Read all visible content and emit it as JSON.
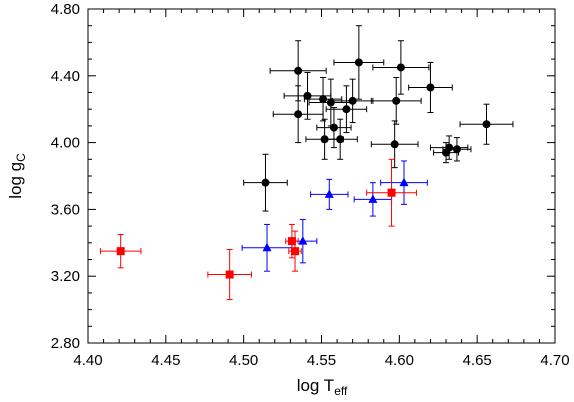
{
  "chart_data": {
    "type": "scatter",
    "title": "",
    "xlabel": {
      "main": "log T",
      "sub": "eff"
    },
    "ylabel": {
      "main": "log g",
      "sub": "C"
    },
    "xlim": [
      4.4,
      4.7
    ],
    "ylim": [
      2.8,
      4.8
    ],
    "xticks": [
      "4.40",
      "4.45",
      "4.50",
      "4.55",
      "4.60",
      "4.65",
      "4.70"
    ],
    "yticks": [
      "2.80",
      "3.20",
      "3.60",
      "4.00",
      "4.40",
      "4.80"
    ],
    "grid": false,
    "legend": "none",
    "series": [
      {
        "marker": "circle",
        "color": "#000000",
        "points": [
          {
            "x": 4.535,
            "y": 4.43,
            "xerr": 0.018,
            "yerr": 0.18
          },
          {
            "x": 4.574,
            "y": 4.48,
            "xerr": 0.016,
            "yerr": 0.22
          },
          {
            "x": 4.601,
            "y": 4.45,
            "xerr": 0.018,
            "yerr": 0.16
          },
          {
            "x": 4.62,
            "y": 4.33,
            "xerr": 0.014,
            "yerr": 0.15
          },
          {
            "x": 4.541,
            "y": 4.28,
            "xerr": 0.015,
            "yerr": 0.14
          },
          {
            "x": 4.551,
            "y": 4.26,
            "xerr": 0.012,
            "yerr": 0.13
          },
          {
            "x": 4.556,
            "y": 4.24,
            "xerr": 0.014,
            "yerr": 0.14
          },
          {
            "x": 4.57,
            "y": 4.25,
            "xerr": 0.013,
            "yerr": 0.13
          },
          {
            "x": 4.598,
            "y": 4.25,
            "xerr": 0.016,
            "yerr": 0.14
          },
          {
            "x": 4.566,
            "y": 4.2,
            "xerr": 0.013,
            "yerr": 0.14
          },
          {
            "x": 4.535,
            "y": 4.17,
            "xerr": 0.016,
            "yerr": 0.17
          },
          {
            "x": 4.558,
            "y": 4.09,
            "xerr": 0.011,
            "yerr": 0.12
          },
          {
            "x": 4.656,
            "y": 4.11,
            "xerr": 0.017,
            "yerr": 0.12
          },
          {
            "x": 4.552,
            "y": 4.02,
            "xerr": 0.012,
            "yerr": 0.12
          },
          {
            "x": 4.562,
            "y": 4.02,
            "xerr": 0.011,
            "yerr": 0.12
          },
          {
            "x": 4.597,
            "y": 3.99,
            "xerr": 0.015,
            "yerr": 0.14
          },
          {
            "x": 4.632,
            "y": 3.97,
            "xerr": 0.012,
            "yerr": 0.07
          },
          {
            "x": 4.637,
            "y": 3.96,
            "xerr": 0.009,
            "yerr": 0.07
          },
          {
            "x": 4.63,
            "y": 3.94,
            "xerr": 0.008,
            "yerr": 0.06
          },
          {
            "x": 4.514,
            "y": 3.76,
            "xerr": 0.014,
            "yerr": 0.17
          }
        ]
      },
      {
        "marker": "triangle",
        "color": "#0000ff",
        "points": [
          {
            "x": 4.555,
            "y": 3.69,
            "xerr": 0.012,
            "yerr": 0.09
          },
          {
            "x": 4.583,
            "y": 3.66,
            "xerr": 0.012,
            "yerr": 0.1
          },
          {
            "x": 4.603,
            "y": 3.76,
            "xerr": 0.015,
            "yerr": 0.13
          },
          {
            "x": 4.515,
            "y": 3.37,
            "xerr": 0.016,
            "yerr": 0.14
          },
          {
            "x": 4.538,
            "y": 3.41,
            "xerr": 0.009,
            "yerr": 0.13
          }
        ]
      },
      {
        "marker": "square",
        "color": "#ff0000",
        "points": [
          {
            "x": 4.421,
            "y": 3.35,
            "xerr": 0.013,
            "yerr": 0.1
          },
          {
            "x": 4.491,
            "y": 3.21,
            "xerr": 0.014,
            "yerr": 0.15
          },
          {
            "x": 4.531,
            "y": 3.41,
            "xerr": 0.004,
            "yerr": 0.1
          },
          {
            "x": 4.533,
            "y": 3.35,
            "xerr": 0.004,
            "yerr": 0.12
          },
          {
            "x": 4.595,
            "y": 3.7,
            "xerr": 0.016,
            "yerr": 0.2
          }
        ]
      }
    ]
  }
}
